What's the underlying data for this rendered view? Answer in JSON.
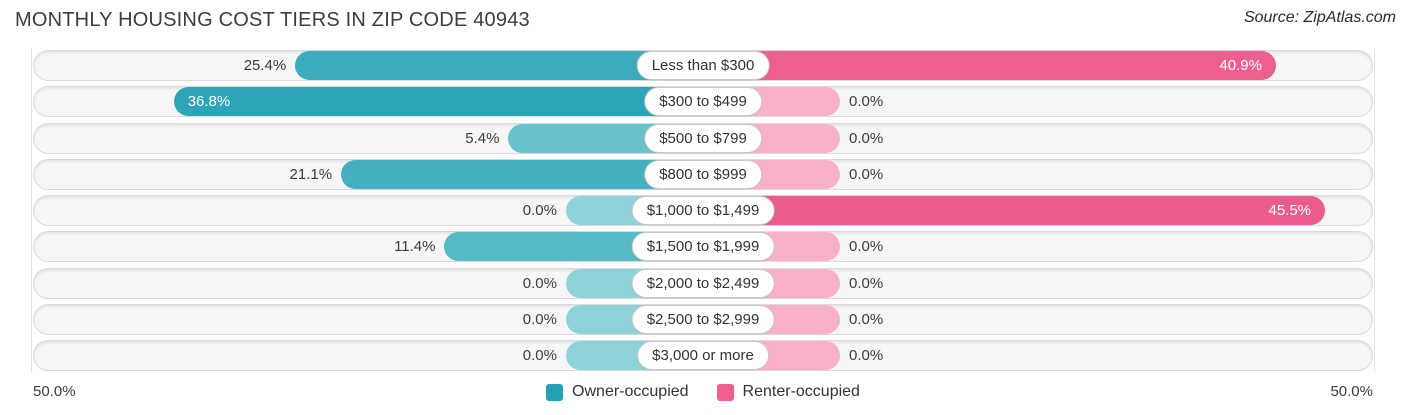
{
  "header": {
    "title": "MONTHLY HOUSING COST TIERS IN ZIP CODE 40943",
    "source": "Source: ZipAtlas.com"
  },
  "axis": {
    "left_tick": "50.0%",
    "right_tick": "50.0%",
    "max_percent": 50
  },
  "legend": {
    "position": "bottom-center",
    "items": [
      {
        "label": "Owner-occupied",
        "color": "#24a2b4"
      },
      {
        "label": "Renter-occupied",
        "color": "#ec5f8e"
      }
    ]
  },
  "colors": {
    "owner_light": "#8ed2da",
    "owner_dark": "#21a0b3",
    "renter_light": "#f8b1c9",
    "renter_dark": "#eb5b8c",
    "grid": "#e2e2e2",
    "track_bg": "#f6f6f7",
    "track_border": "#dadada",
    "label_text": "#3b3b3b",
    "inside_label_text": "#ffffff"
  },
  "chart_data": {
    "type": "bar",
    "variant": "diverging-horizontal",
    "title": "MONTHLY HOUSING COST TIERS IN ZIP CODE 40943",
    "categories": [
      "Less than $300",
      "$300 to $499",
      "$500 to $799",
      "$800 to $999",
      "$1,000 to $1,499",
      "$1,500 to $1,999",
      "$2,000 to $2,499",
      "$2,500 to $2,999",
      "$3,000 or more"
    ],
    "series": [
      {
        "name": "Owner-occupied",
        "side": "left",
        "values": [
          25.4,
          36.8,
          5.4,
          21.1,
          0.0,
          11.4,
          0.0,
          0.0,
          0.0
        ],
        "labels": [
          "25.4%",
          "36.8%",
          "5.4%",
          "21.1%",
          "0.0%",
          "11.4%",
          "0.0%",
          "0.0%",
          "0.0%"
        ]
      },
      {
        "name": "Renter-occupied",
        "side": "right",
        "values": [
          40.9,
          0.0,
          0.0,
          0.0,
          45.5,
          0.0,
          0.0,
          0.0,
          0.0
        ],
        "labels": [
          "40.9%",
          "0.0%",
          "0.0%",
          "0.0%",
          "45.5%",
          "0.0%",
          "0.0%",
          "0.0%",
          "0.0%"
        ]
      }
    ],
    "axis": {
      "min": 0,
      "max": 50,
      "left_tick": "50.0%",
      "right_tick": "50.0%"
    },
    "grid": "vertical lines at 50% marks only",
    "legend_position": "bottom-center"
  }
}
